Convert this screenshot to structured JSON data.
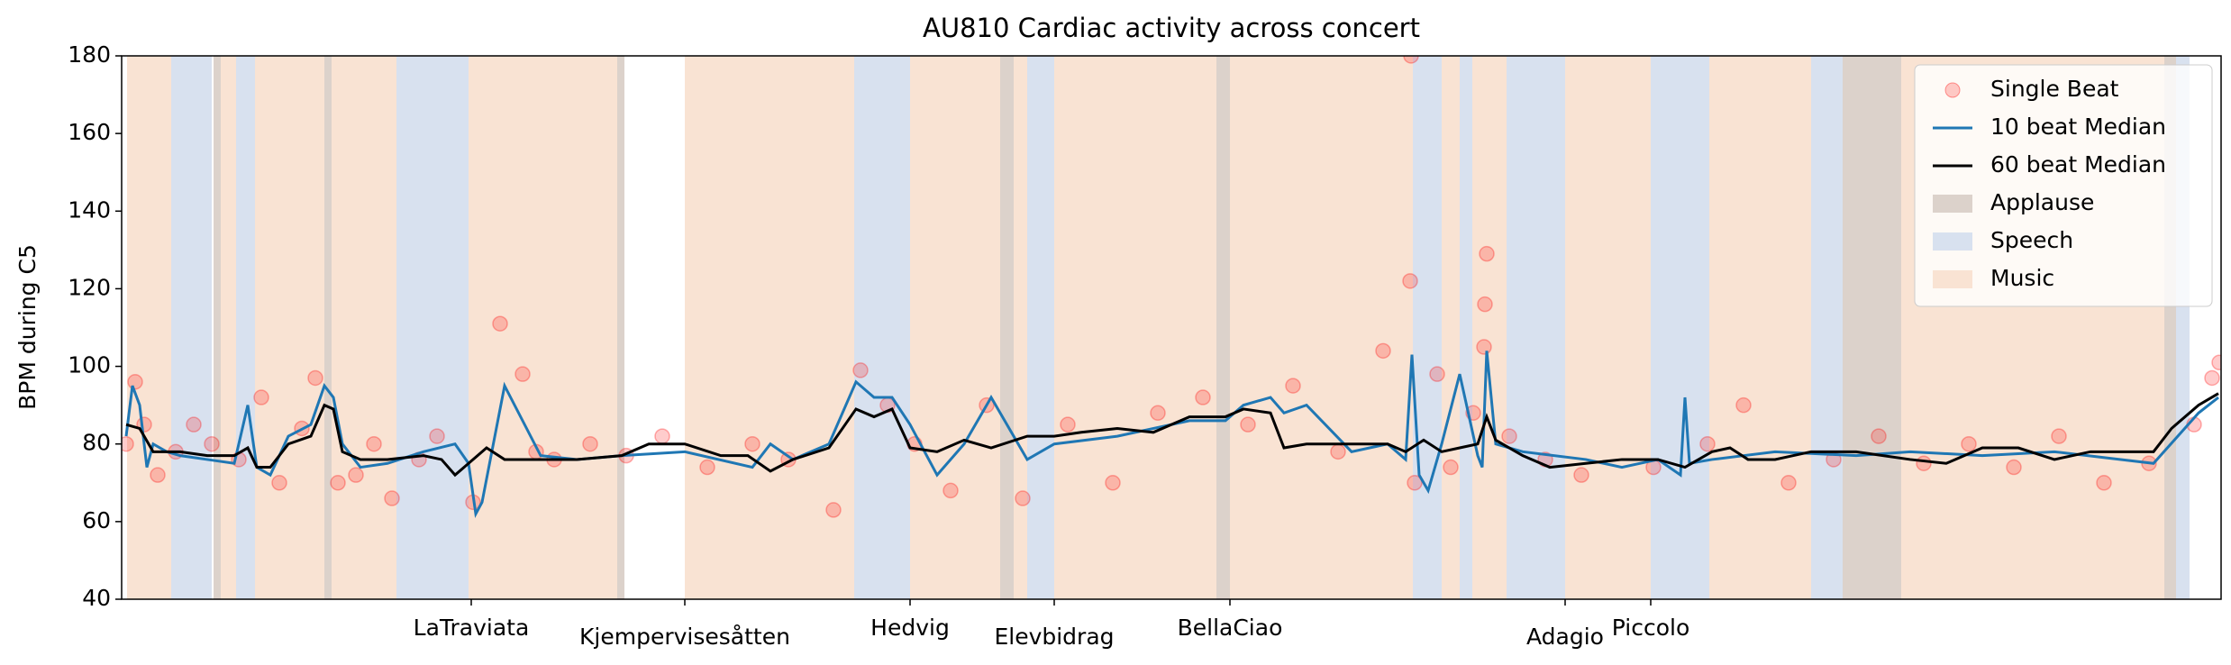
{
  "chart_data": {
    "type": "line",
    "title": "AU810 Cardiac activity across concert",
    "y_label": "BPM during C5",
    "xlim": [
      0,
      2330
    ],
    "ylim": [
      40,
      180
    ],
    "yticks": [
      40,
      60,
      80,
      100,
      120,
      140,
      160,
      180
    ],
    "xticks": [
      {
        "value": 388,
        "label": "LaTraviata"
      },
      {
        "value": 625,
        "label": "Kjempervisesåtten"
      },
      {
        "value": 875,
        "label": "Hedvig"
      },
      {
        "value": 1035,
        "label": "Elevbidrag"
      },
      {
        "value": 1230,
        "label": "BellaCiao"
      },
      {
        "value": 1602,
        "label": "Adagio"
      },
      {
        "value": 1697,
        "label": "Piccolo"
      }
    ],
    "legend": "upper right",
    "spans": [
      {
        "name": "Applause",
        "color": "#dcd2cb",
        "ranges": [
          [
            102,
            110
          ],
          [
            225,
            233
          ],
          [
            550,
            558
          ],
          [
            975,
            990
          ],
          [
            1215,
            1230
          ],
          [
            1910,
            1975
          ],
          [
            2267,
            2280
          ]
        ]
      },
      {
        "name": "Speech",
        "color": "#d8e1ef",
        "ranges": [
          [
            55,
            100
          ],
          [
            127,
            148
          ],
          [
            305,
            385
          ],
          [
            813,
            875
          ],
          [
            1005,
            1035
          ],
          [
            1433,
            1465
          ],
          [
            1485,
            1499
          ],
          [
            1537,
            1602
          ],
          [
            1697,
            1762
          ],
          [
            1875,
            1910
          ],
          [
            2280,
            2295
          ]
        ]
      },
      {
        "name": "Music",
        "color": "#f9e3d3",
        "ranges": [
          [
            6,
            55
          ],
          [
            110,
            127
          ],
          [
            148,
            225
          ],
          [
            233,
            305
          ],
          [
            385,
            550
          ],
          [
            625,
            813
          ],
          [
            875,
            975
          ],
          [
            990,
            1005
          ],
          [
            1035,
            1215
          ],
          [
            1230,
            1433
          ],
          [
            1465,
            1485
          ],
          [
            1499,
            1537
          ],
          [
            1602,
            1697
          ],
          [
            1762,
            1875
          ],
          [
            1975,
            2267
          ]
        ]
      }
    ],
    "series": [
      {
        "name": "Single Beat",
        "type": "scatter",
        "color": "#ff0000",
        "x": [
          5,
          15,
          25,
          40,
          60,
          80,
          100,
          130,
          155,
          175,
          200,
          215,
          240,
          260,
          280,
          300,
          330,
          350,
          390,
          420,
          445,
          460,
          480,
          520,
          560,
          600,
          650,
          700,
          740,
          790,
          820,
          850,
          880,
          920,
          960,
          1000,
          1050,
          1100,
          1150,
          1200,
          1250,
          1300,
          1350,
          1400,
          1430,
          1431,
          1435,
          1460,
          1475,
          1500,
          1513,
          1515,
          1512,
          1540,
          1580,
          1620,
          1700,
          1760,
          1800,
          1850,
          1900,
          1950,
          2000,
          2050,
          2100,
          2150,
          2200,
          2250,
          2300,
          2320,
          2328
        ],
        "values": [
          80,
          96,
          85,
          72,
          78,
          85,
          80,
          76,
          92,
          70,
          84,
          97,
          70,
          72,
          80,
          66,
          76,
          82,
          65,
          111,
          98,
          78,
          76,
          80,
          77,
          82,
          74,
          80,
          76,
          63,
          99,
          90,
          80,
          68,
          90,
          66,
          85,
          70,
          88,
          92,
          85,
          95,
          78,
          104,
          122,
          180,
          70,
          98,
          74,
          88,
          116,
          129,
          105,
          82,
          76,
          72,
          74,
          80,
          90,
          70,
          76,
          82,
          75,
          80,
          74,
          82,
          70,
          75,
          85,
          97,
          101
        ]
      },
      {
        "name": "10 beat Median",
        "type": "line",
        "color": "#1f77b4",
        "x": [
          5,
          12,
          20,
          28,
          35,
          50,
          65,
          95,
          125,
          140,
          150,
          165,
          185,
          210,
          225,
          235,
          245,
          265,
          295,
          335,
          370,
          385,
          393,
          400,
          425,
          465,
          505,
          555,
          625,
          700,
          720,
          745,
          785,
          815,
          835,
          855,
          875,
          905,
          935,
          965,
          1005,
          1035,
          1105,
          1185,
          1225,
          1245,
          1275,
          1290,
          1315,
          1365,
          1405,
          1425,
          1432,
          1440,
          1450,
          1465,
          1485,
          1505,
          1510,
          1515,
          1525,
          1555,
          1625,
          1665,
          1705,
          1730,
          1735,
          1740,
          1765,
          1835,
          1925,
          1985,
          2065,
          2145,
          2255,
          2305,
          2327
        ],
        "values": [
          82,
          95,
          90,
          74,
          80,
          78,
          77,
          76,
          75,
          90,
          74,
          72,
          82,
          85,
          95,
          92,
          80,
          74,
          75,
          78,
          80,
          75,
          62,
          65,
          95,
          77,
          76,
          77,
          78,
          74,
          80,
          76,
          80,
          96,
          92,
          92,
          85,
          72,
          80,
          92,
          76,
          80,
          82,
          86,
          86,
          90,
          92,
          88,
          90,
          78,
          80,
          76,
          103,
          72,
          68,
          80,
          98,
          77,
          74,
          104,
          80,
          78,
          76,
          74,
          76,
          72,
          92,
          75,
          76,
          78,
          77,
          78,
          77,
          78,
          75,
          88,
          92
        ]
      },
      {
        "name": "60 beat Median",
        "type": "line",
        "color": "#000000",
        "x": [
          5,
          20,
          35,
          65,
          95,
          125,
          140,
          150,
          165,
          185,
          210,
          225,
          235,
          245,
          265,
          295,
          335,
          355,
          370,
          385,
          405,
          425,
          465,
          505,
          555,
          585,
          625,
          665,
          695,
          720,
          745,
          785,
          815,
          835,
          855,
          875,
          905,
          935,
          965,
          1005,
          1035,
          1065,
          1105,
          1145,
          1185,
          1225,
          1245,
          1275,
          1290,
          1315,
          1365,
          1405,
          1425,
          1445,
          1465,
          1485,
          1505,
          1515,
          1525,
          1555,
          1585,
          1625,
          1665,
          1705,
          1735,
          1765,
          1785,
          1805,
          1835,
          1875,
          1925,
          1985,
          2025,
          2065,
          2105,
          2145,
          2185,
          2255,
          2275,
          2305,
          2327
        ],
        "values": [
          85,
          84,
          78,
          78,
          77,
          77,
          79,
          74,
          74,
          80,
          82,
          90,
          89,
          78,
          76,
          76,
          77,
          76,
          72,
          75,
          79,
          76,
          76,
          76,
          77,
          80,
          80,
          77,
          77,
          73,
          76,
          79,
          89,
          87,
          89,
          79,
          78,
          81,
          79,
          82,
          82,
          83,
          84,
          83,
          87,
          87,
          89,
          88,
          79,
          80,
          80,
          80,
          78,
          81,
          78,
          79,
          80,
          87,
          81,
          77,
          74,
          75,
          76,
          76,
          74,
          78,
          79,
          76,
          76,
          78,
          78,
          76,
          75,
          79,
          79,
          76,
          78,
          78,
          84,
          90,
          93
        ]
      }
    ]
  }
}
